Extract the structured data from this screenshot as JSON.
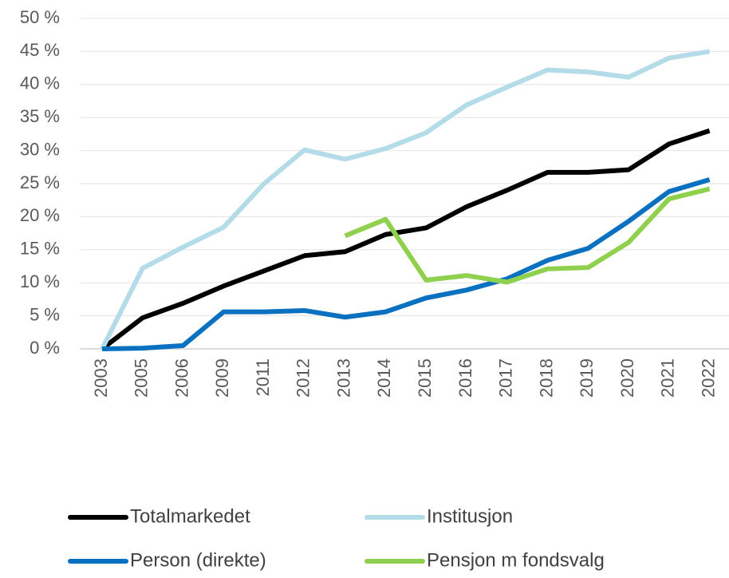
{
  "chart_data": {
    "type": "line",
    "categories": [
      "2003",
      "2005",
      "2006",
      "2009",
      "2011",
      "2012",
      "2013",
      "2014",
      "2015",
      "2016",
      "2017",
      "2018",
      "2019",
      "2020",
      "2021",
      "2022"
    ],
    "series": [
      {
        "name": "Totalmarkedet",
        "color": "#000000",
        "values": [
          0,
          4.7,
          6.9,
          9.5,
          11.8,
          14.1,
          14.7,
          17.3,
          18.3,
          21.5,
          24,
          26.7,
          26.7,
          27.1,
          31,
          33
        ]
      },
      {
        "name": "Institusjon",
        "color": "#b4dbe8",
        "values": [
          0,
          12.2,
          15.4,
          18.4,
          25,
          30.1,
          28.7,
          30.3,
          32.7,
          36.9,
          39.6,
          42.2,
          41.9,
          41.1,
          44,
          45
        ]
      },
      {
        "name": "Person (direkte)",
        "color": "#0a70c0",
        "values": [
          0,
          0.1,
          0.5,
          5.6,
          5.6,
          5.8,
          4.8,
          5.6,
          7.7,
          8.9,
          10.6,
          13.4,
          15.2,
          19.3,
          23.8,
          25.6
        ]
      },
      {
        "name": "Pensjon m fondsvalg",
        "color": "#8fd14f",
        "values": [
          null,
          null,
          null,
          null,
          null,
          null,
          17.1,
          19.6,
          10.4,
          11.1,
          10.1,
          12.1,
          12.3,
          16.1,
          22.7,
          24.2
        ]
      }
    ],
    "ylim": [
      0,
      50
    ],
    "yticks": [
      {
        "value": 0,
        "label": "0 %"
      },
      {
        "value": 5,
        "label": "5 %"
      },
      {
        "value": 10,
        "label": "10 %"
      },
      {
        "value": 15,
        "label": "15 %"
      },
      {
        "value": 20,
        "label": "20 %"
      },
      {
        "value": 25,
        "label": "25 %"
      },
      {
        "value": 30,
        "label": "30 %"
      },
      {
        "value": 35,
        "label": "35 %"
      },
      {
        "value": 40,
        "label": "40 %"
      },
      {
        "value": 45,
        "label": "45 %"
      },
      {
        "value": 50,
        "label": "50 %"
      }
    ],
    "grid": true
  }
}
